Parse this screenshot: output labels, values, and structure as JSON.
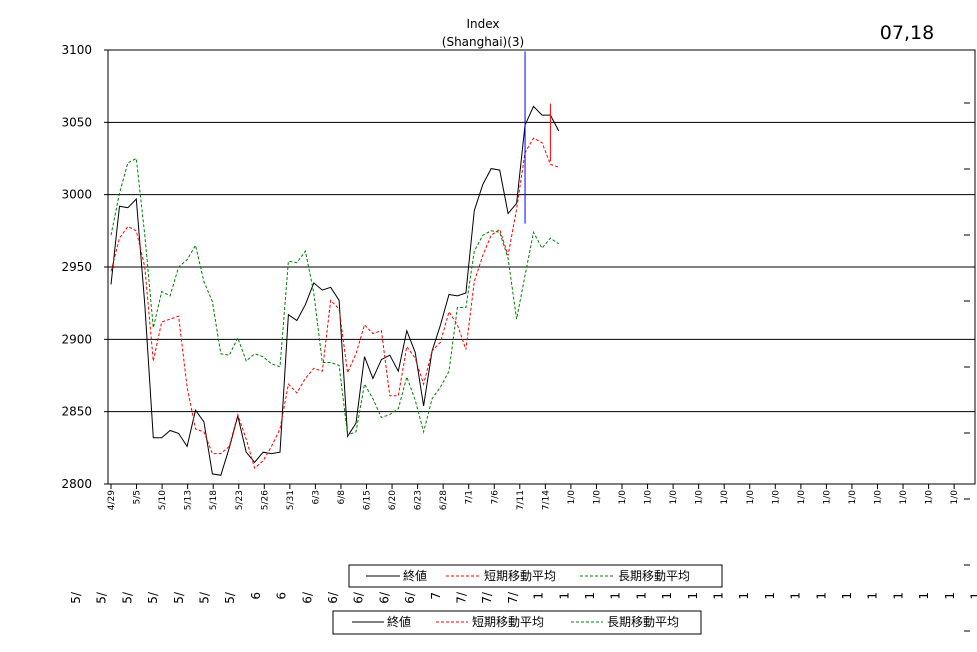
{
  "date_label": "07,18",
  "chart_data": {
    "type": "line",
    "title": "Index",
    "subtitle": "(Shanghai)(3)",
    "ylim": [
      2800,
      3100
    ],
    "y_ticks": [
      3100,
      3050,
      3000,
      2950,
      2900,
      2850,
      2800
    ],
    "grid": true,
    "x_tick_labels": [
      "4/29",
      "5/5",
      "5/10",
      "5/13",
      "5/18",
      "5/23",
      "5/26",
      "5/31",
      "6/3",
      "6/8",
      "6/15",
      "6/20",
      "6/23",
      "6/28",
      "7/1",
      "7/6",
      "7/11",
      "7/14",
      "1/0",
      "1/0",
      "1/0",
      "1/0",
      "1/0",
      "1/0",
      "1/0",
      "1/0",
      "1/0",
      "1/0",
      "1/0",
      "1/0",
      "1/0",
      "1/0",
      "1/0",
      "1/0"
    ],
    "series": [
      {
        "name": "終値",
        "color": "#000000",
        "dash": "solid",
        "values": [
          2938,
          2992,
          2991,
          2997,
          2924,
          2832,
          2832,
          2837,
          2835,
          2826,
          2851,
          2843,
          2807,
          2806,
          2825,
          2847,
          2822,
          2815,
          2822,
          2821,
          2822,
          2917,
          2913,
          2924,
          2939,
          2934,
          2936,
          2927,
          2833,
          2842,
          2888,
          2873,
          2886,
          2889,
          2878,
          2906,
          2891,
          2854,
          2892,
          2910,
          2931,
          2930,
          2932,
          2989,
          3007,
          3018,
          3017,
          2987,
          2994,
          3048,
          3061,
          3055,
          3055,
          3044
        ]
      },
      {
        "name": "短期移動平均",
        "color": "#ff0000",
        "dash": "dashed",
        "values": [
          2947,
          2970,
          2978,
          2975,
          2950,
          2885,
          2912,
          2914,
          2916,
          2867,
          2838,
          2836,
          2821,
          2821,
          2826,
          2848,
          2831,
          2811,
          2816,
          2826,
          2838,
          2869,
          2863,
          2873,
          2880,
          2878,
          2927,
          2921,
          2877,
          2890,
          2910,
          2904,
          2906,
          2861,
          2861,
          2895,
          2887,
          2869,
          2892,
          2898,
          2919,
          2910,
          2893,
          2940,
          2958,
          2972,
          2976,
          2958,
          2990,
          3029,
          3039,
          3036,
          3021,
          3019
        ]
      },
      {
        "name": "長期移動平均",
        "color": "#008000",
        "dash": "dashed",
        "values": [
          2972,
          3001,
          3022,
          3025,
          2972,
          2908,
          2933,
          2930,
          2950,
          2955,
          2965,
          2940,
          2926,
          2890,
          2889,
          2901,
          2885,
          2890,
          2888,
          2883,
          2881,
          2954,
          2953,
          2961,
          2932,
          2884,
          2884,
          2882,
          2834,
          2836,
          2869,
          2859,
          2846,
          2848,
          2852,
          2874,
          2858,
          2836,
          2859,
          2867,
          2878,
          2922,
          2922,
          2961,
          2972,
          2975,
          2974,
          2956,
          2914,
          2944,
          2974,
          2963,
          2970,
          2966
        ]
      }
    ],
    "markers": [
      {
        "x_index": 49,
        "high": 3099,
        "low": 2980,
        "color": "#0000ff"
      },
      {
        "x_index": 52,
        "high": 3063,
        "low": 3023,
        "color": "#ff0000"
      }
    ],
    "legend_placement": "bottom",
    "lower_axis_labels": [
      "5/",
      "5/",
      "5/",
      "5/",
      "5/",
      "5/",
      "5/",
      "6",
      "6",
      "6/",
      "6/",
      "6/",
      "6/",
      "6/",
      "7",
      "7/",
      "7/",
      "7/",
      "1",
      "1",
      "1",
      "1",
      "1",
      "1",
      "1",
      "1",
      "1",
      "1",
      "1",
      "1",
      "1",
      "1",
      "1",
      "1",
      "1",
      "1"
    ]
  }
}
